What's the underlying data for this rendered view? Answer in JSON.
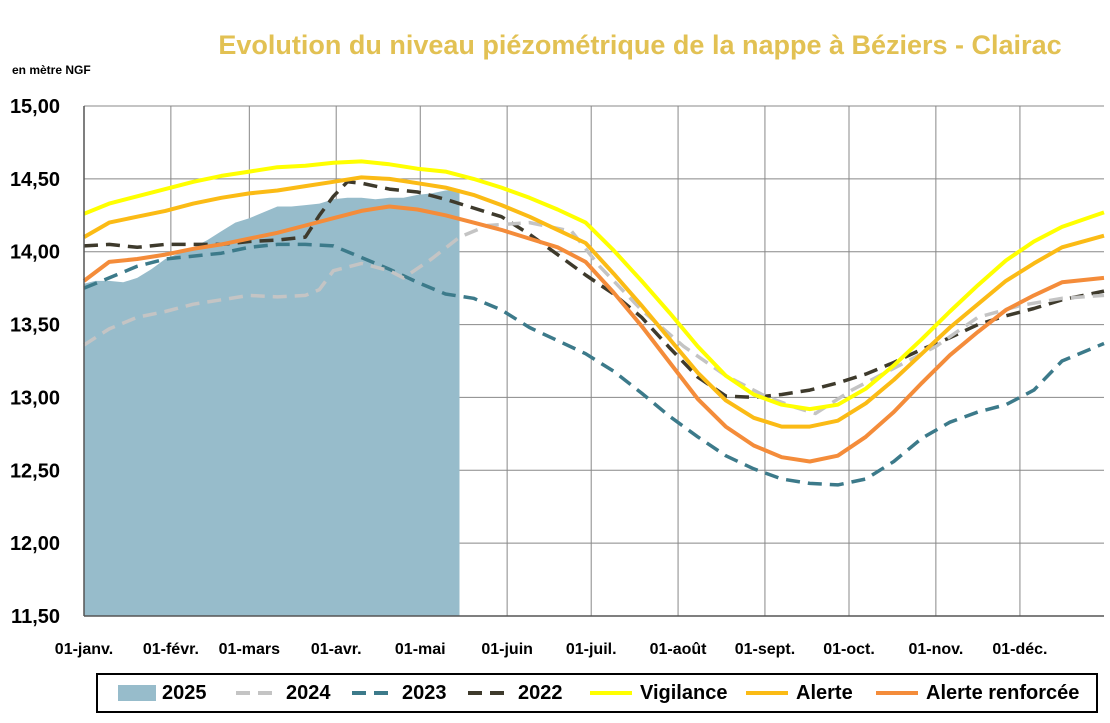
{
  "chart_data": {
    "type": "area",
    "title": "Evolution du niveau piézométrique de la nappe à Béziers  - Clairac",
    "ylabel": "en mètre NGF",
    "xlabel": "",
    "ylim": [
      11.5,
      15.0
    ],
    "xlim": [
      1,
      365
    ],
    "grid": true,
    "legend_position": "bottom",
    "y_ticks": [
      "11,50",
      "12,00",
      "12,50",
      "13,00",
      "13,50",
      "14,00",
      "14,50",
      "15,00"
    ],
    "y_tick_values": [
      11.5,
      12.0,
      12.5,
      13.0,
      13.5,
      14.0,
      14.5,
      15.0
    ],
    "x_ticks": [
      "01-janv.",
      "01-févr.",
      "01-mars",
      "01-avr.",
      "01-mai",
      "01-juin",
      "01-juil.",
      "01-août",
      "01-sept.",
      "01-oct.",
      "01-nov.",
      "01-déc."
    ],
    "x_tick_days": [
      1,
      32,
      60,
      91,
      121,
      152,
      182,
      213,
      244,
      274,
      305,
      335
    ],
    "series": [
      {
        "name": "2025",
        "style": "area",
        "color": "#97bccb",
        "x": [
          1,
          5,
          10,
          15,
          20,
          25,
          30,
          35,
          40,
          45,
          50,
          55,
          60,
          65,
          70,
          75,
          80,
          85,
          90,
          95,
          100,
          105,
          110,
          115,
          120,
          125,
          130,
          135
        ],
        "y": [
          13.78,
          13.8,
          13.8,
          13.79,
          13.82,
          13.88,
          13.95,
          13.99,
          14.03,
          14.08,
          14.14,
          14.2,
          14.23,
          14.27,
          14.31,
          14.31,
          14.32,
          14.33,
          14.36,
          14.37,
          14.37,
          14.36,
          14.37,
          14.37,
          14.39,
          14.4,
          14.42,
          14.43
        ]
      },
      {
        "name": "2024",
        "style": "dashed",
        "color": "#c4c4c4",
        "x": [
          1,
          10,
          20,
          30,
          40,
          50,
          60,
          70,
          80,
          85,
          90,
          100,
          110,
          115,
          125,
          135,
          145,
          160,
          175,
          185,
          200,
          215,
          230,
          244,
          255,
          262,
          275,
          290,
          305,
          320,
          335,
          350,
          365
        ],
        "y": [
          13.36,
          13.47,
          13.55,
          13.59,
          13.64,
          13.67,
          13.7,
          13.69,
          13.7,
          13.74,
          13.87,
          13.92,
          13.87,
          13.82,
          13.95,
          14.1,
          14.18,
          14.2,
          14.14,
          13.9,
          13.6,
          13.35,
          13.15,
          13.01,
          12.93,
          12.89,
          13.05,
          13.2,
          13.35,
          13.55,
          13.63,
          13.68,
          13.7
        ]
      },
      {
        "name": "2023",
        "style": "dashed",
        "color": "#3c7a8a",
        "x": [
          1,
          10,
          20,
          30,
          40,
          50,
          60,
          70,
          80,
          90,
          100,
          110,
          120,
          130,
          140,
          150,
          160,
          170,
          180,
          190,
          200,
          210,
          220,
          230,
          240,
          250,
          260,
          270,
          280,
          290,
          300,
          310,
          320,
          330,
          340,
          350,
          365
        ],
        "y": [
          13.75,
          13.82,
          13.9,
          13.95,
          13.97,
          13.99,
          14.03,
          14.05,
          14.05,
          14.04,
          13.96,
          13.88,
          13.79,
          13.71,
          13.68,
          13.6,
          13.48,
          13.39,
          13.3,
          13.18,
          13.03,
          12.87,
          12.73,
          12.6,
          12.51,
          12.44,
          12.41,
          12.4,
          12.44,
          12.56,
          12.72,
          12.83,
          12.9,
          12.95,
          13.05,
          13.25,
          13.37
        ]
      },
      {
        "name": "2022",
        "style": "dashed",
        "color": "#3e3a2c",
        "x": [
          1,
          10,
          20,
          30,
          40,
          50,
          60,
          70,
          80,
          85,
          90,
          95,
          100,
          110,
          120,
          130,
          140,
          150,
          160,
          170,
          180,
          190,
          200,
          210,
          220,
          230,
          240,
          250,
          260,
          270,
          280,
          290,
          300,
          310,
          320,
          330,
          340,
          350,
          365
        ],
        "y": [
          14.04,
          14.05,
          14.03,
          14.05,
          14.05,
          14.05,
          14.07,
          14.08,
          14.1,
          14.25,
          14.38,
          14.48,
          14.47,
          14.43,
          14.41,
          14.36,
          14.3,
          14.24,
          14.12,
          13.98,
          13.84,
          13.71,
          13.55,
          13.34,
          13.14,
          13.01,
          13.0,
          13.02,
          13.05,
          13.1,
          13.16,
          13.24,
          13.33,
          13.41,
          13.5,
          13.56,
          13.61,
          13.67,
          13.73
        ]
      },
      {
        "name": "Vigilance",
        "style": "solid",
        "color": "#ffff00",
        "x": [
          1,
          10,
          20,
          30,
          40,
          50,
          60,
          70,
          80,
          90,
          100,
          110,
          120,
          130,
          140,
          150,
          160,
          170,
          180,
          190,
          200,
          210,
          220,
          230,
          240,
          250,
          260,
          270,
          280,
          290,
          300,
          310,
          320,
          330,
          340,
          350,
          365
        ],
        "y": [
          14.26,
          14.33,
          14.38,
          14.43,
          14.48,
          14.52,
          14.55,
          14.58,
          14.59,
          14.61,
          14.62,
          14.6,
          14.57,
          14.55,
          14.5,
          14.44,
          14.37,
          14.29,
          14.2,
          14.01,
          13.8,
          13.58,
          13.35,
          13.15,
          13.02,
          12.95,
          12.92,
          12.95,
          13.06,
          13.22,
          13.4,
          13.59,
          13.77,
          13.94,
          14.07,
          14.17,
          14.27
        ]
      },
      {
        "name": "Alerte",
        "style": "solid",
        "color": "#fbbb15",
        "x": [
          1,
          10,
          20,
          30,
          40,
          50,
          60,
          70,
          80,
          90,
          100,
          110,
          120,
          130,
          140,
          150,
          160,
          170,
          180,
          190,
          200,
          210,
          220,
          230,
          240,
          250,
          260,
          270,
          280,
          290,
          300,
          310,
          320,
          330,
          340,
          350,
          365
        ],
        "y": [
          14.1,
          14.2,
          14.24,
          14.28,
          14.33,
          14.37,
          14.4,
          14.42,
          14.45,
          14.48,
          14.51,
          14.5,
          14.47,
          14.44,
          14.39,
          14.32,
          14.24,
          14.15,
          14.06,
          13.85,
          13.63,
          13.4,
          13.17,
          12.98,
          12.86,
          12.8,
          12.8,
          12.84,
          12.96,
          13.12,
          13.3,
          13.48,
          13.64,
          13.8,
          13.92,
          14.03,
          14.11
        ]
      },
      {
        "name": "Alerte renforcée",
        "style": "solid",
        "color": "#f48c3a",
        "x": [
          1,
          10,
          20,
          30,
          40,
          50,
          60,
          70,
          80,
          90,
          100,
          110,
          120,
          130,
          140,
          150,
          160,
          170,
          180,
          190,
          200,
          210,
          220,
          230,
          240,
          250,
          260,
          270,
          280,
          290,
          300,
          310,
          320,
          330,
          340,
          350,
          365
        ],
        "y": [
          13.8,
          13.93,
          13.95,
          13.98,
          14.02,
          14.05,
          14.09,
          14.13,
          14.18,
          14.23,
          14.28,
          14.31,
          14.29,
          14.25,
          14.2,
          14.15,
          14.09,
          14.03,
          13.93,
          13.72,
          13.49,
          13.24,
          12.99,
          12.8,
          12.67,
          12.59,
          12.56,
          12.6,
          12.73,
          12.9,
          13.1,
          13.29,
          13.45,
          13.6,
          13.7,
          13.79,
          13.82
        ]
      }
    ]
  }
}
